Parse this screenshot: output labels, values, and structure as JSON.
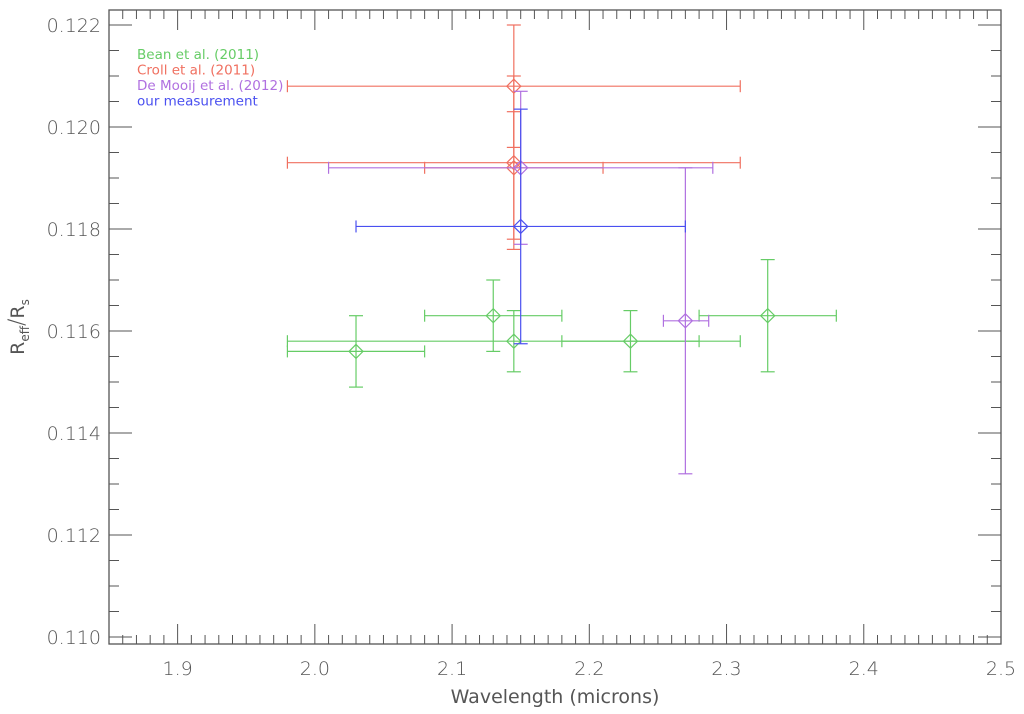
{
  "chart_data": {
    "type": "scatter",
    "title": "",
    "xlabel": "Wavelength (microns)",
    "ylabel": "R_eff/R_s",
    "ylabel_main": "R",
    "ylabel_sub1": "eff",
    "ylabel_sub2": "s",
    "xlim": [
      1.85,
      2.5
    ],
    "ylim": [
      0.11,
      0.1223
    ],
    "grid": false,
    "legend_position": "upper-left",
    "x_ticks": [
      1.9,
      2.0,
      2.1,
      2.2,
      2.3,
      2.4,
      2.5
    ],
    "x_tick_labels": [
      "1.9",
      "2.0",
      "2.1",
      "2.2",
      "2.3",
      "2.4",
      "2.5"
    ],
    "y_ticks": [
      0.11,
      0.112,
      0.114,
      0.116,
      0.118,
      0.12,
      0.122
    ],
    "y_tick_labels": [
      "0.110",
      "0.112",
      "0.114",
      "0.116",
      "0.118",
      "0.120",
      "0.122"
    ],
    "marker": "diamond-open",
    "series": [
      {
        "name": "Bean et al. (2011)",
        "color": "#66cc66",
        "points": [
          {
            "x": 2.03,
            "y": 0.1156,
            "xmin": 1.98,
            "xmax": 2.08,
            "ymin": 0.1149,
            "ymax": 0.1163
          },
          {
            "x": 2.13,
            "y": 0.1163,
            "xmin": 2.08,
            "xmax": 2.18,
            "ymin": 0.1156,
            "ymax": 0.117
          },
          {
            "x": 2.145,
            "y": 0.1158,
            "xmin": 1.98,
            "xmax": 2.31,
            "ymin": 0.1152,
            "ymax": 0.1164
          },
          {
            "x": 2.23,
            "y": 0.1158,
            "xmin": 2.18,
            "xmax": 2.28,
            "ymin": 0.1152,
            "ymax": 0.1164
          },
          {
            "x": 2.33,
            "y": 0.1163,
            "xmin": 2.28,
            "xmax": 2.38,
            "ymin": 0.1152,
            "ymax": 0.1174
          }
        ]
      },
      {
        "name": "Croll et al. (2011)",
        "color": "#f07060",
        "points": [
          {
            "x": 2.145,
            "y": 0.1208,
            "xmin": 1.98,
            "xmax": 2.31,
            "ymin": 0.1196,
            "ymax": 0.122
          },
          {
            "x": 2.145,
            "y": 0.1193,
            "xmin": 1.98,
            "xmax": 2.31,
            "ymin": 0.1176,
            "ymax": 0.121
          },
          {
            "x": 2.145,
            "y": 0.1192,
            "xmin": 2.08,
            "xmax": 2.21,
            "ymin": 0.1178,
            "ymax": 0.1203
          }
        ]
      },
      {
        "name": "De Mooij et al. (2012)",
        "color": "#b070e0",
        "points": [
          {
            "x": 2.15,
            "y": 0.1192,
            "xmin": 2.01,
            "xmax": 2.29,
            "ymin": 0.1177,
            "ymax": 0.1207
          },
          {
            "x": 2.27,
            "y": 0.1162,
            "xmin": 2.254,
            "xmax": 2.287,
            "ymin": 0.1132,
            "ymax": 0.1192
          }
        ]
      },
      {
        "name": "our measurement",
        "color": "#4a50f0",
        "points": [
          {
            "x": 2.15,
            "y": 0.11805,
            "xmin": 2.03,
            "xmax": 2.27,
            "ymin": 0.11575,
            "ymax": 0.12035
          }
        ]
      }
    ]
  },
  "legend": {
    "items": [
      {
        "label": "Bean et al. (2011)",
        "color": "#66cc66"
      },
      {
        "label": "Croll et al. (2011)",
        "color": "#f07060"
      },
      {
        "label": "De Mooij et al. (2012)",
        "color": "#b070e0"
      },
      {
        "label": "our measurement",
        "color": "#4a50f0"
      }
    ]
  },
  "axes": {
    "x_title": "Wavelength (microns)",
    "axis_color": "#555555"
  }
}
